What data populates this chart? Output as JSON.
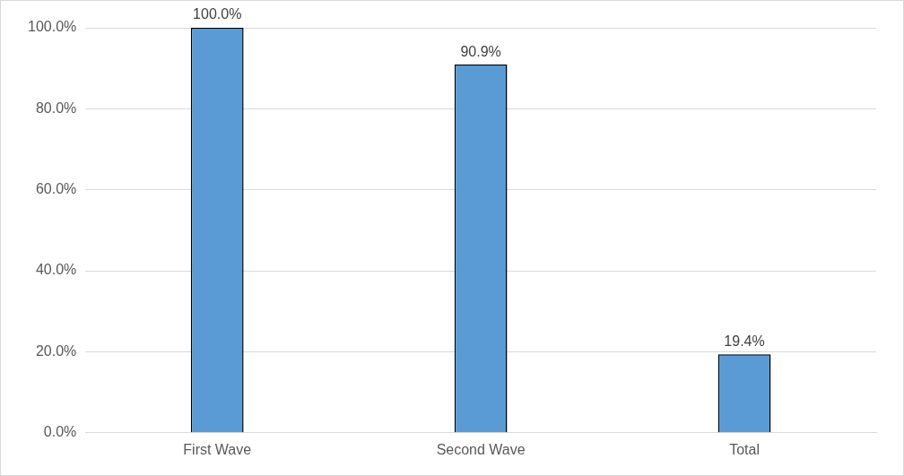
{
  "chart_data": {
    "type": "bar",
    "categories": [
      "First Wave",
      "Second Wave",
      "Total"
    ],
    "values": [
      100.0,
      90.9,
      19.4
    ],
    "value_labels": [
      "100.0%",
      "90.9%",
      "19.4%"
    ],
    "color": "#5b9bd5",
    "ylim": [
      0,
      100
    ],
    "yticks": [
      {
        "value": 0,
        "label": "0.0%"
      },
      {
        "value": 20,
        "label": "20.0%"
      },
      {
        "value": 40,
        "label": "40.0%"
      },
      {
        "value": 60,
        "label": "60.0%"
      },
      {
        "value": 80,
        "label": "80.0%"
      },
      {
        "value": 100,
        "label": "100.0%"
      }
    ],
    "grid": "y",
    "legend": false
  }
}
